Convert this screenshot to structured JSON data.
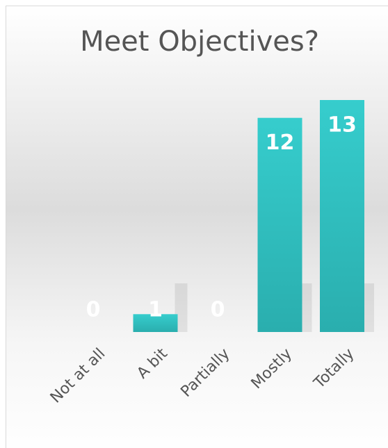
{
  "chart_data": {
    "type": "bar",
    "title": "Meet Objectives?",
    "categories": [
      "Not at all",
      "A bit",
      "Partially",
      "Mostly",
      "Totally"
    ],
    "values": [
      0,
      1,
      0,
      12,
      13
    ],
    "color": "#33c6c6",
    "grid": false
  }
}
